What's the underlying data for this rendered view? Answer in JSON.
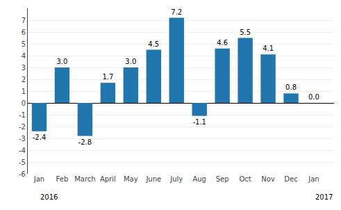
{
  "chart_data": {
    "type": "bar",
    "categories": [
      "Jan",
      "Feb",
      "March",
      "April",
      "May",
      "June",
      "July",
      "Aug",
      "Sep",
      "Oct",
      "Nov",
      "Dec",
      "Jan"
    ],
    "values": [
      -2.4,
      3.0,
      -2.8,
      1.7,
      3.0,
      4.5,
      7.2,
      -1.1,
      4.6,
      5.5,
      4.1,
      0.8,
      0.0
    ],
    "value_labels": [
      "-2.4",
      "3.0",
      "-2.8",
      "1.7",
      "3.0",
      "4.5",
      "7.2",
      "-1.1",
      "4.6",
      "5.5",
      "4.1",
      "0.8",
      "0.0"
    ],
    "data_labels": true,
    "color": "#2176ae",
    "ylim": [
      -6,
      8
    ],
    "yticks": [
      -6,
      -5,
      -4,
      -3,
      -2,
      -1,
      0,
      1,
      2,
      3,
      4,
      5,
      6,
      7
    ],
    "grid": true,
    "annotations": [
      {
        "text": "2016",
        "x": 0
      },
      {
        "text": "2017",
        "x": 12
      }
    ]
  }
}
